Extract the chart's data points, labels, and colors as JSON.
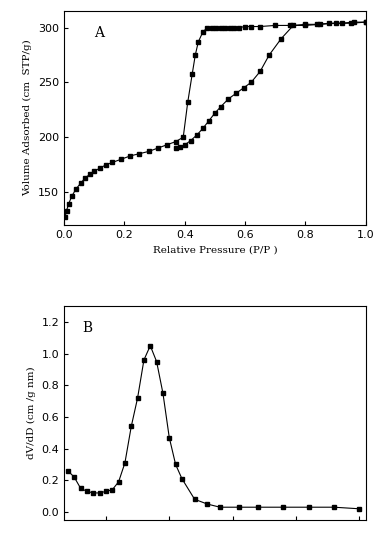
{
  "panel_A": {
    "label": "A",
    "xlabel": "Relative Pressure (P/P )",
    "ylabel": "Volume Adsorbed (cm  STP/g)",
    "xlim": [
      0.0,
      1.0
    ],
    "ylim": [
      120,
      315
    ],
    "yticks": [
      150,
      200,
      250,
      300
    ],
    "xticks": [
      0.0,
      0.2,
      0.4,
      0.6,
      0.8,
      1.0
    ],
    "adsorption_x": [
      0.003,
      0.008,
      0.015,
      0.025,
      0.04,
      0.055,
      0.07,
      0.085,
      0.1,
      0.12,
      0.14,
      0.16,
      0.19,
      0.22,
      0.25,
      0.28,
      0.31,
      0.34,
      0.37,
      0.395,
      0.41,
      0.425,
      0.435,
      0.445,
      0.46,
      0.475,
      0.49,
      0.505,
      0.52,
      0.535,
      0.55,
      0.565,
      0.58,
      0.6,
      0.62,
      0.65,
      0.7,
      0.75,
      0.8,
      0.85,
      0.9,
      0.95,
      1.0
    ],
    "adsorption_y": [
      127,
      133,
      139,
      146,
      153,
      158,
      163,
      166,
      169,
      172,
      175,
      177,
      180,
      183,
      185,
      187,
      190,
      193,
      196,
      200,
      232,
      258,
      275,
      287,
      296,
      300,
      300,
      300,
      300,
      300,
      300,
      300,
      300,
      301,
      301,
      301,
      302,
      302,
      302,
      303,
      304,
      304,
      305
    ],
    "desorption_x": [
      1.0,
      0.96,
      0.92,
      0.88,
      0.84,
      0.8,
      0.76,
      0.72,
      0.68,
      0.65,
      0.62,
      0.595,
      0.57,
      0.545,
      0.52,
      0.5,
      0.48,
      0.46,
      0.44,
      0.42,
      0.4,
      0.385,
      0.37
    ],
    "desorption_y": [
      305,
      305,
      304,
      304,
      303,
      303,
      302,
      290,
      275,
      260,
      250,
      245,
      240,
      235,
      228,
      222,
      215,
      208,
      202,
      197,
      193,
      191,
      190
    ],
    "color": "#000000",
    "marker": "s",
    "markersize": 3.5,
    "linewidth": 0.8,
    "linestyle": "-"
  },
  "panel_B": {
    "label": "B",
    "xlabel": "",
    "ylabel": "dV/dD (cm /g nm)",
    "ylim": [
      -0.05,
      1.3
    ],
    "yticks": [
      0.0,
      0.2,
      0.4,
      0.6,
      0.8,
      1.0,
      1.2
    ],
    "x": [
      2.0,
      2.5,
      3.0,
      3.5,
      4.0,
      4.5,
      5.0,
      5.5,
      6.0,
      6.5,
      7.0,
      7.5,
      8.0,
      8.5,
      9.0,
      9.5,
      10.0,
      10.5,
      11.0,
      12.0,
      13.0,
      14.0,
      15.5,
      17.0,
      19.0,
      21.0,
      23.0,
      25.0
    ],
    "y": [
      0.26,
      0.22,
      0.15,
      0.13,
      0.12,
      0.12,
      0.13,
      0.14,
      0.19,
      0.31,
      0.54,
      0.72,
      0.96,
      1.05,
      0.95,
      0.75,
      0.47,
      0.3,
      0.21,
      0.08,
      0.05,
      0.03,
      0.03,
      0.03,
      0.03,
      0.03,
      0.03,
      0.02
    ],
    "color": "#000000",
    "marker": "s",
    "markersize": 3.5,
    "linewidth": 0.8,
    "linestyle": "-"
  },
  "background_color": "#ffffff",
  "figure_facecolor": "#ffffff"
}
